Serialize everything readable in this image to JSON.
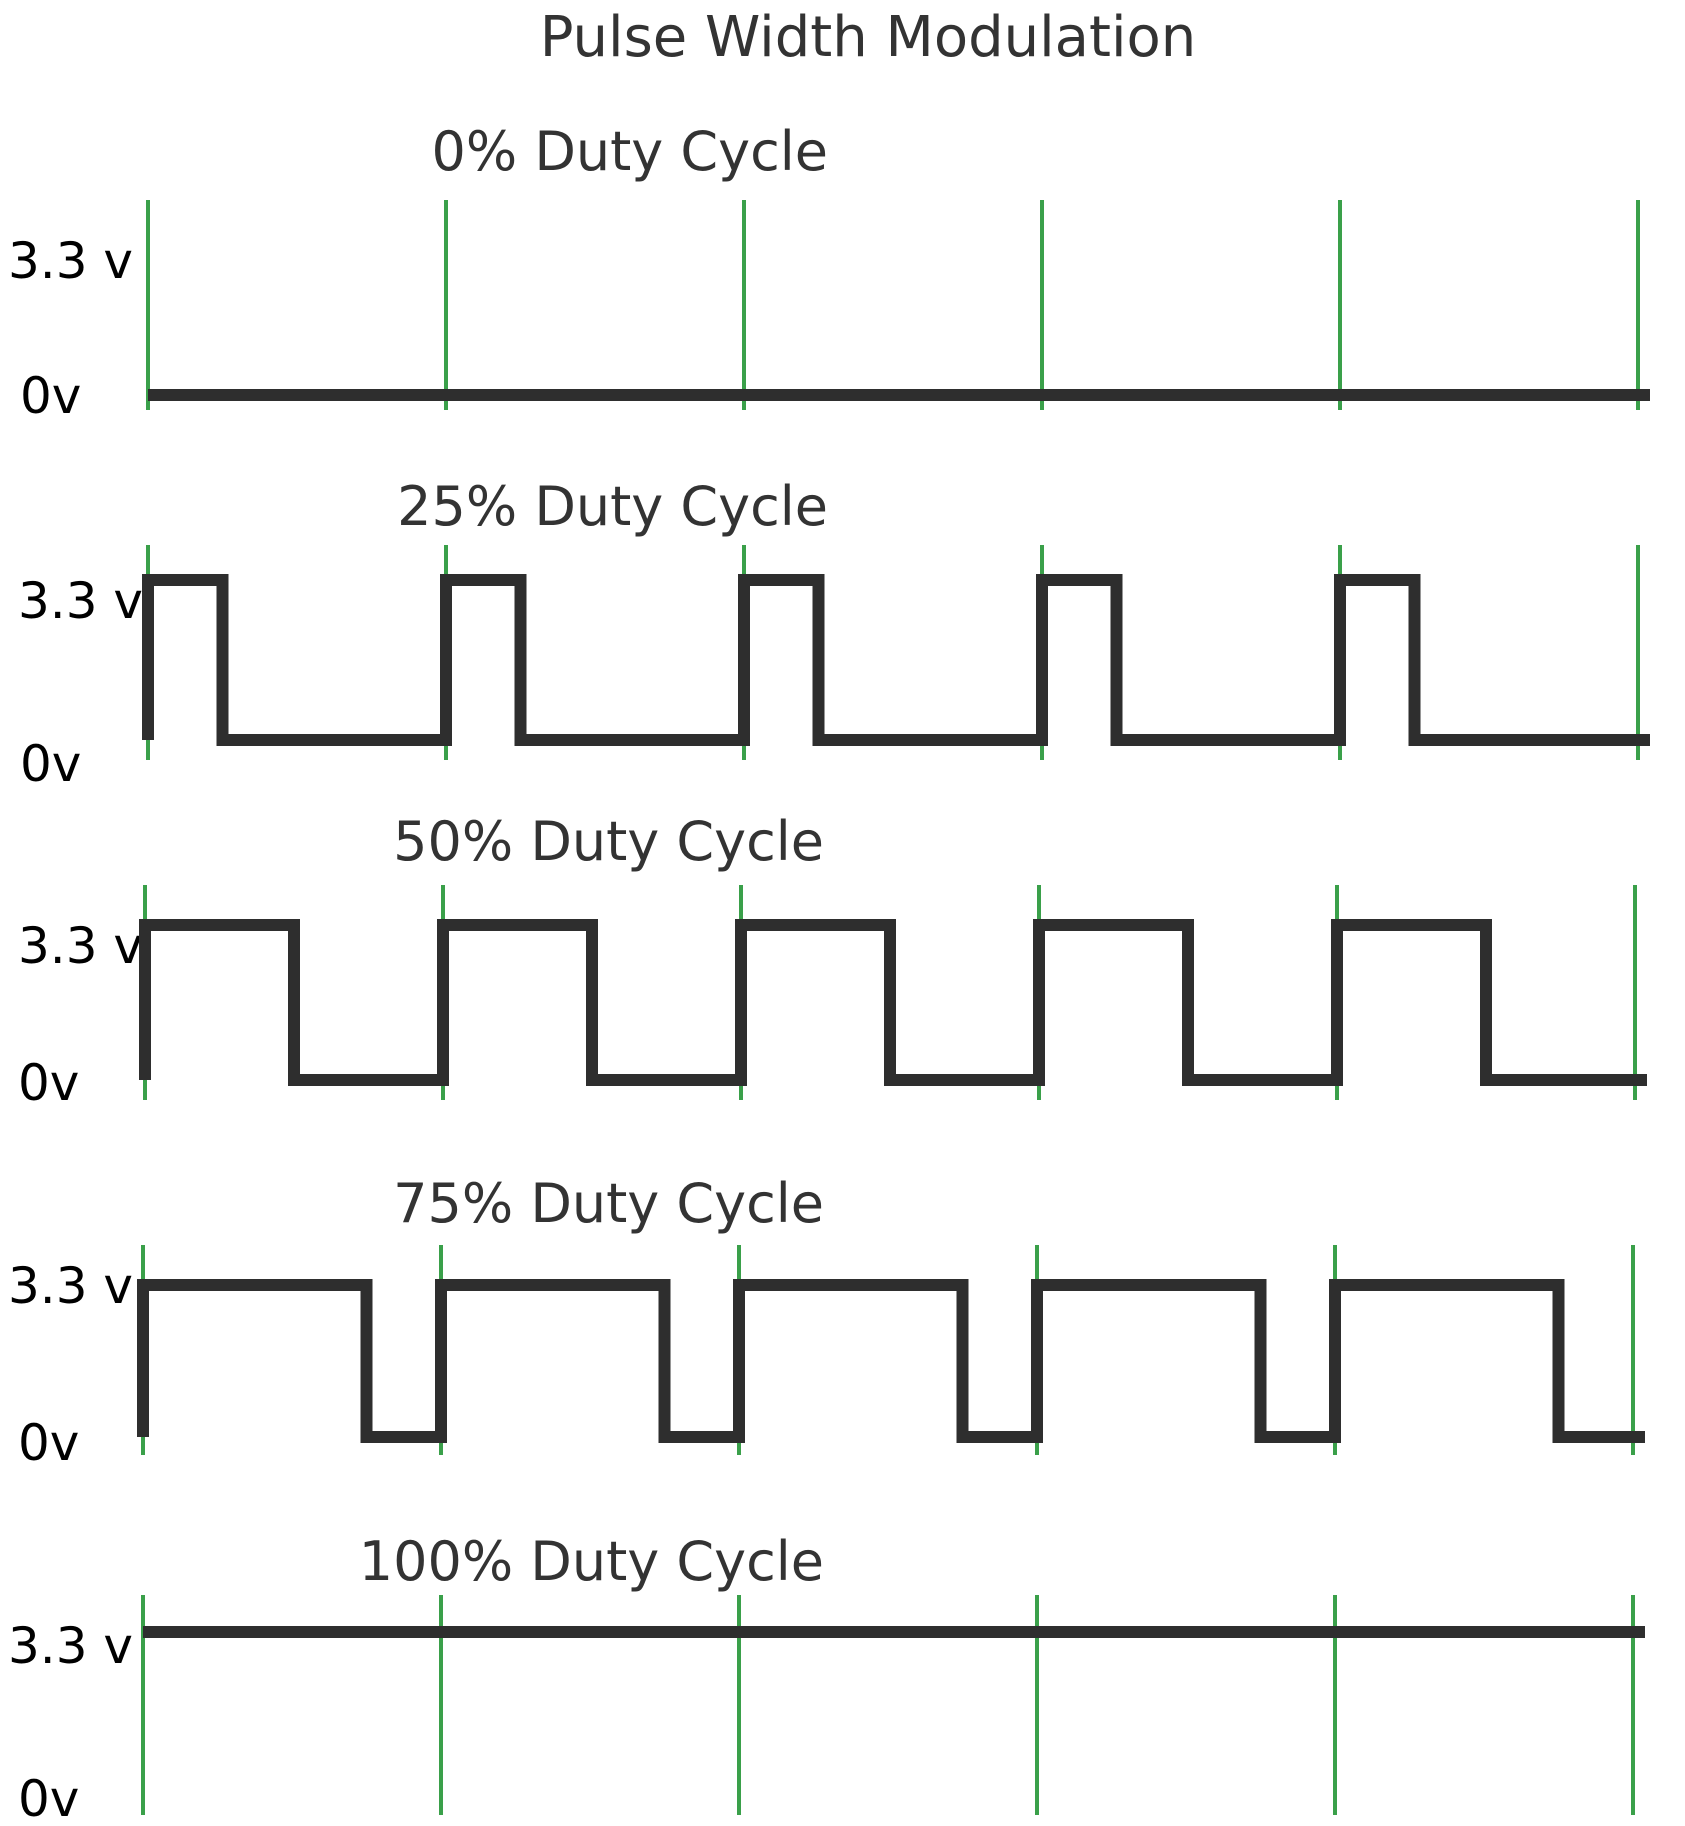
{
  "title": "Pulse Width Modulation",
  "colors": {
    "background": "#ffffff",
    "signal": "#2e2e2e",
    "period_marker": "#3aa04a",
    "text": "#333333"
  },
  "periods_per_panel": 5,
  "panels": [
    {
      "title": "0% Duty Cycle",
      "duty_cycle": 0,
      "high_label": "3.3 v",
      "low_label": "0v"
    },
    {
      "title": "25% Duty Cycle",
      "duty_cycle": 0.25,
      "high_label": "3.3 v",
      "low_label": "0v"
    },
    {
      "title": "50% Duty Cycle",
      "duty_cycle": 0.5,
      "high_label": "3.3 v",
      "low_label": "0v"
    },
    {
      "title": "75% Duty Cycle",
      "duty_cycle": 0.75,
      "high_label": "3.3 v",
      "low_label": "0v"
    },
    {
      "title": "100% Duty Cycle",
      "duty_cycle": 1,
      "high_label": "3.3 v",
      "low_label": "0v"
    }
  ]
}
